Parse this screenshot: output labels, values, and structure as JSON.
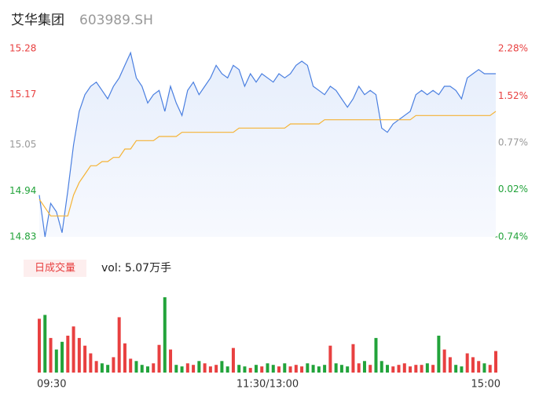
{
  "chart_data": [
    {
      "type": "line",
      "title": "艾华集团",
      "subtitle": "603989.SH",
      "x": [
        0,
        3,
        6,
        9,
        12,
        15,
        18,
        21,
        24,
        27,
        30,
        33,
        36,
        39,
        42,
        45,
        48,
        51,
        54,
        57,
        60,
        63,
        66,
        69,
        72,
        75,
        78,
        81,
        84,
        87,
        90,
        93,
        96,
        99,
        102,
        105,
        108,
        111,
        114,
        117,
        120,
        123,
        126,
        129,
        132,
        135,
        138,
        141,
        144,
        147,
        150,
        153,
        156,
        159,
        162,
        165,
        168,
        171,
        174,
        177,
        180,
        183,
        186,
        189,
        192,
        195,
        198,
        201,
        204,
        207,
        210,
        213,
        216,
        219,
        222,
        225,
        228,
        231,
        234,
        237,
        240
      ],
      "xlim": [
        0,
        240
      ],
      "xticks": [
        {
          "value": 0,
          "label": "09:30"
        },
        {
          "value": 120,
          "label": "11:30/13:00"
        },
        {
          "value": 240,
          "label": "15:00"
        }
      ],
      "ylim": [
        14.83,
        15.28
      ],
      "yticks": [
        15.28,
        15.17,
        15.05,
        14.94,
        14.83
      ],
      "y2lim": [
        -0.74,
        2.28
      ],
      "y2ticks": [
        {
          "value": 2.28,
          "label": "2.28%"
        },
        {
          "value": 1.52,
          "label": "1.52%"
        },
        {
          "value": 0.77,
          "label": "0.77%"
        },
        {
          "value": 0.02,
          "label": "0.02%"
        },
        {
          "value": -0.74,
          "label": "-0.74%"
        }
      ],
      "series": [
        {
          "color": "#4a7fe0",
          "values": [
            14.93,
            14.83,
            14.91,
            14.89,
            14.84,
            14.94,
            15.05,
            15.13,
            15.17,
            15.19,
            15.2,
            15.18,
            15.16,
            15.19,
            15.21,
            15.24,
            15.27,
            15.21,
            15.19,
            15.15,
            15.17,
            15.18,
            15.13,
            15.19,
            15.15,
            15.12,
            15.18,
            15.2,
            15.17,
            15.19,
            15.21,
            15.24,
            15.22,
            15.21,
            15.24,
            15.23,
            15.19,
            15.22,
            15.2,
            15.22,
            15.21,
            15.2,
            15.22,
            15.21,
            15.22,
            15.24,
            15.25,
            15.24,
            15.19,
            15.18,
            15.17,
            15.19,
            15.18,
            15.16,
            15.14,
            15.16,
            15.19,
            15.17,
            15.18,
            15.17,
            15.09,
            15.08,
            15.1,
            15.11,
            15.12,
            15.13,
            15.17,
            15.18,
            15.17,
            15.18,
            15.17,
            15.19,
            15.19,
            15.18,
            15.16,
            15.21,
            15.22,
            15.23,
            15.22,
            15.22,
            15.22
          ]
        },
        {
          "color": "#f5b335",
          "values": [
            14.92,
            14.9,
            14.88,
            14.88,
            14.88,
            14.88,
            14.93,
            14.96,
            14.98,
            15.0,
            15.0,
            15.01,
            15.01,
            15.02,
            15.02,
            15.04,
            15.04,
            15.06,
            15.06,
            15.06,
            15.06,
            15.07,
            15.07,
            15.07,
            15.07,
            15.08,
            15.08,
            15.08,
            15.08,
            15.08,
            15.08,
            15.08,
            15.08,
            15.08,
            15.08,
            15.09,
            15.09,
            15.09,
            15.09,
            15.09,
            15.09,
            15.09,
            15.09,
            15.09,
            15.1,
            15.1,
            15.1,
            15.1,
            15.1,
            15.1,
            15.11,
            15.11,
            15.11,
            15.11,
            15.11,
            15.11,
            15.11,
            15.11,
            15.11,
            15.11,
            15.11,
            15.11,
            15.11,
            15.11,
            15.11,
            15.11,
            15.12,
            15.12,
            15.12,
            15.12,
            15.12,
            15.12,
            15.12,
            15.12,
            15.12,
            15.12,
            15.12,
            15.12,
            15.12,
            15.12,
            15.13
          ]
        }
      ]
    },
    {
      "type": "bar",
      "legend": "日成交量",
      "label": "vol: 5.07万手",
      "ylim": [
        0,
        100
      ],
      "up_color": "#e84040",
      "down_color": "#22a33a",
      "values": [
        70,
        75,
        45,
        30,
        40,
        48,
        60,
        45,
        35,
        25,
        15,
        12,
        10,
        20,
        72,
        38,
        18,
        15,
        10,
        8,
        12,
        36,
        98,
        30,
        10,
        8,
        12,
        10,
        15,
        12,
        8,
        10,
        15,
        8,
        32,
        10,
        8,
        6,
        10,
        8,
        12,
        10,
        8,
        12,
        8,
        10,
        8,
        12,
        10,
        8,
        10,
        35,
        12,
        10,
        8,
        37,
        12,
        15,
        10,
        45,
        15,
        10,
        8,
        10,
        12,
        8,
        10,
        10,
        12,
        10,
        48,
        30,
        20,
        10,
        8,
        25,
        20,
        15,
        12,
        10,
        28
      ]
    }
  ]
}
